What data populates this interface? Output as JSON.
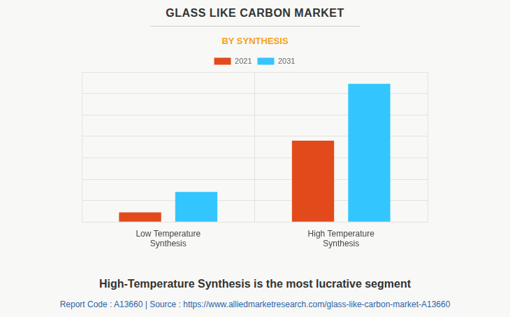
{
  "chart_data": {
    "type": "bar",
    "title": "GLASS LIKE CARBON MARKET",
    "subtitle": "BY SYNTHESIS",
    "categories": [
      "Low Temperature Synthesis",
      "High Temperature Synthesis"
    ],
    "series": [
      {
        "name": "2021",
        "color": "#e34a1b",
        "values": [
          0.45,
          3.8
        ]
      },
      {
        "name": "2031",
        "color": "#33c6fe",
        "values": [
          1.4,
          6.45
        ]
      }
    ],
    "ylim": [
      0,
      7
    ],
    "yticks": [
      0,
      1,
      2,
      3,
      4,
      5,
      6,
      7
    ],
    "grid": true,
    "legend": "top",
    "tick_labels": "x",
    "annotations": [
      "High-Temperature Synthesis is the most lucrative segment",
      "Report Code : A13660 | Source : https://www.alliedmarketresearch.com/glass-like-carbon-market-A13660"
    ]
  }
}
